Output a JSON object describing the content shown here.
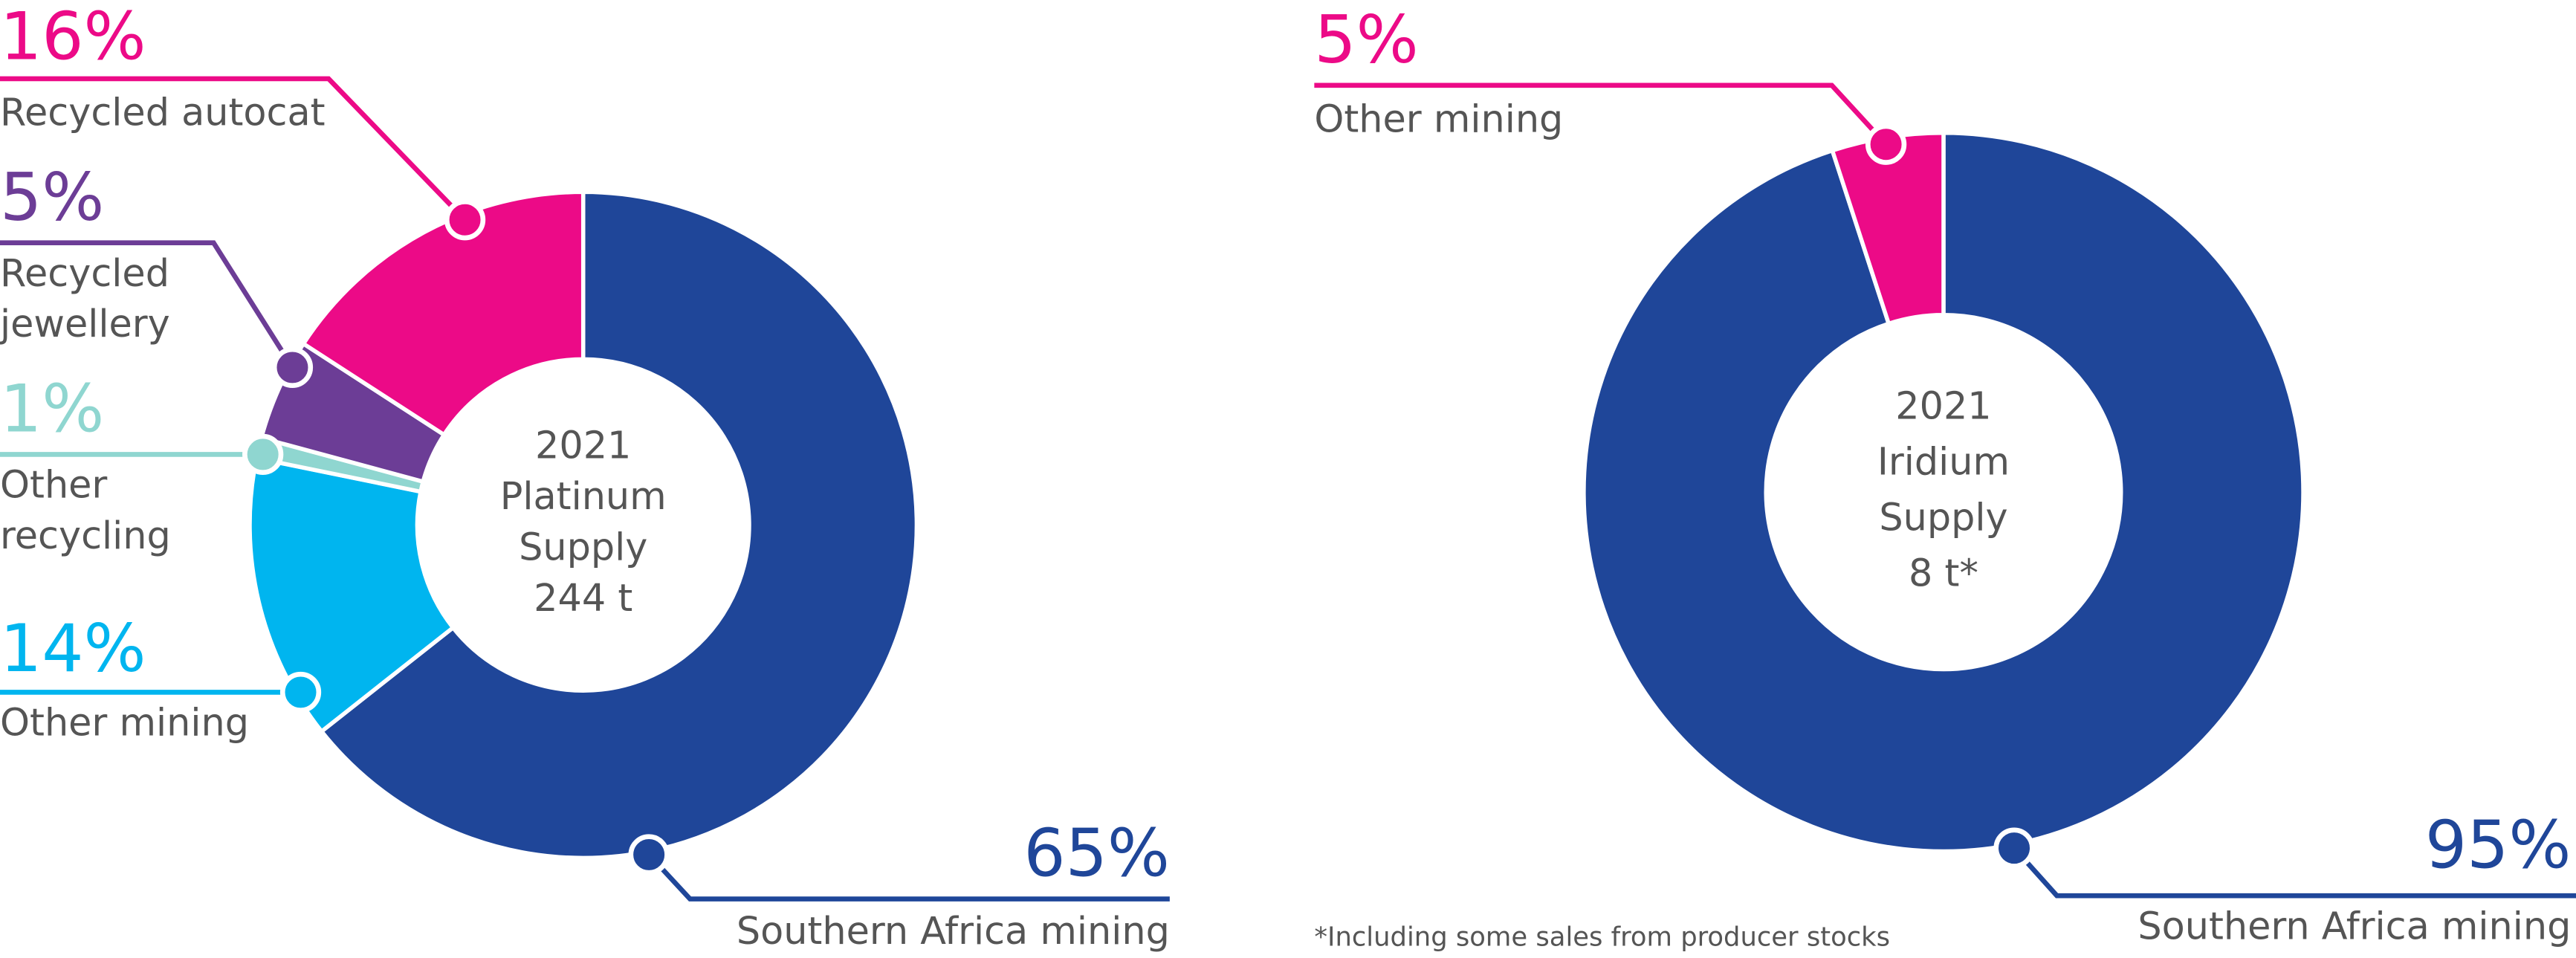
{
  "chart_data": [
    {
      "type": "pie",
      "donut": true,
      "center_label": [
        "2021",
        "Platinum",
        "Supply",
        "244 t"
      ],
      "categories": [
        "Southern Africa mining",
        "Other mining",
        "Other recycling",
        "Recycled jewellery",
        "Recycled autocat"
      ],
      "values": [
        65,
        14,
        1,
        5,
        16
      ],
      "value_labels": [
        "65%",
        "14%",
        "1%",
        "5%",
        "16%"
      ],
      "colors": [
        "#1f4699",
        "#00b5ef",
        "#8fd6d0",
        "#6c3d96",
        "#ec0a87"
      ]
    },
    {
      "type": "pie",
      "donut": true,
      "center_label": [
        "2021",
        "Iridium",
        "Supply",
        "8 t*"
      ],
      "categories": [
        "Southern Africa mining",
        "Other mining"
      ],
      "values": [
        95,
        5
      ],
      "value_labels": [
        "95%",
        "5%"
      ],
      "colors": [
        "#1f4699",
        "#ec0a87"
      ],
      "note": "*Including some sales from producer stocks"
    }
  ]
}
